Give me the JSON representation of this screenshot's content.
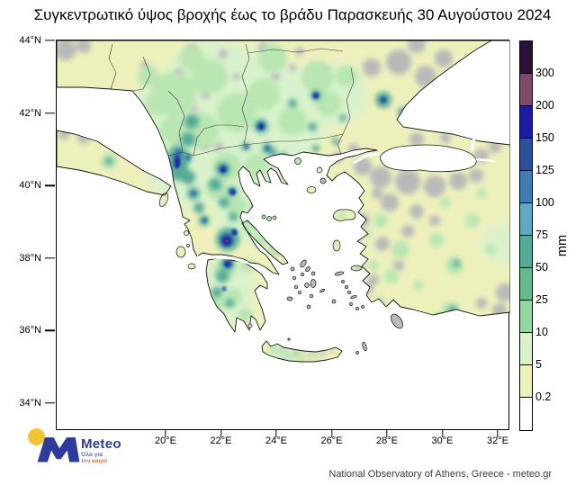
{
  "title": "Συγκεντρωτικό ύψος βροχής έως το βράδυ Παρασκευής 30 Αυγούστου 2024",
  "axes": {
    "lat_labels": [
      "44°N",
      "42°N",
      "40°N",
      "38°N",
      "36°N",
      "34°N"
    ],
    "lon_labels": [
      "20°E",
      "22°E",
      "24°E",
      "26°E",
      "28°E",
      "30°E",
      "32°E"
    ]
  },
  "legend": {
    "unit": "mm",
    "swatches": [
      {
        "color": "#2a1238",
        "label": ""
      },
      {
        "color": "#7d4a6b",
        "label": "300"
      },
      {
        "color": "#1c1ca3",
        "label": "200"
      },
      {
        "color": "#2b5298",
        "label": "150"
      },
      {
        "color": "#3e7cb2",
        "label": "125"
      },
      {
        "color": "#63a8c2",
        "label": "100"
      },
      {
        "color": "#54ab96",
        "label": "75"
      },
      {
        "color": "#66b98c",
        "label": "50"
      },
      {
        "color": "#93d6a4",
        "label": "25"
      },
      {
        "color": "#d9f2cd",
        "label": "10"
      },
      {
        "color": "#eef0bc",
        "label": "5"
      },
      {
        "color": "#ffffff",
        "label": "0.2"
      }
    ]
  },
  "logo": {
    "brand": "Meteo",
    "tagline_line1": "Όλα για",
    "tagline_line2": "τον καιρό"
  },
  "attribution": "National Observatory of Athens, Greece - meteo.gr",
  "colors": {
    "no_data_gray": "#b9b9b9",
    "sea_white": "#ffffff",
    "land_base": "#eef0bc",
    "logo_blue": "#2d3b9a",
    "logo_yellow": "#f0c435",
    "tagline_blue": "#6a6ab0",
    "tagline_orange": "#cf7a45"
  }
}
